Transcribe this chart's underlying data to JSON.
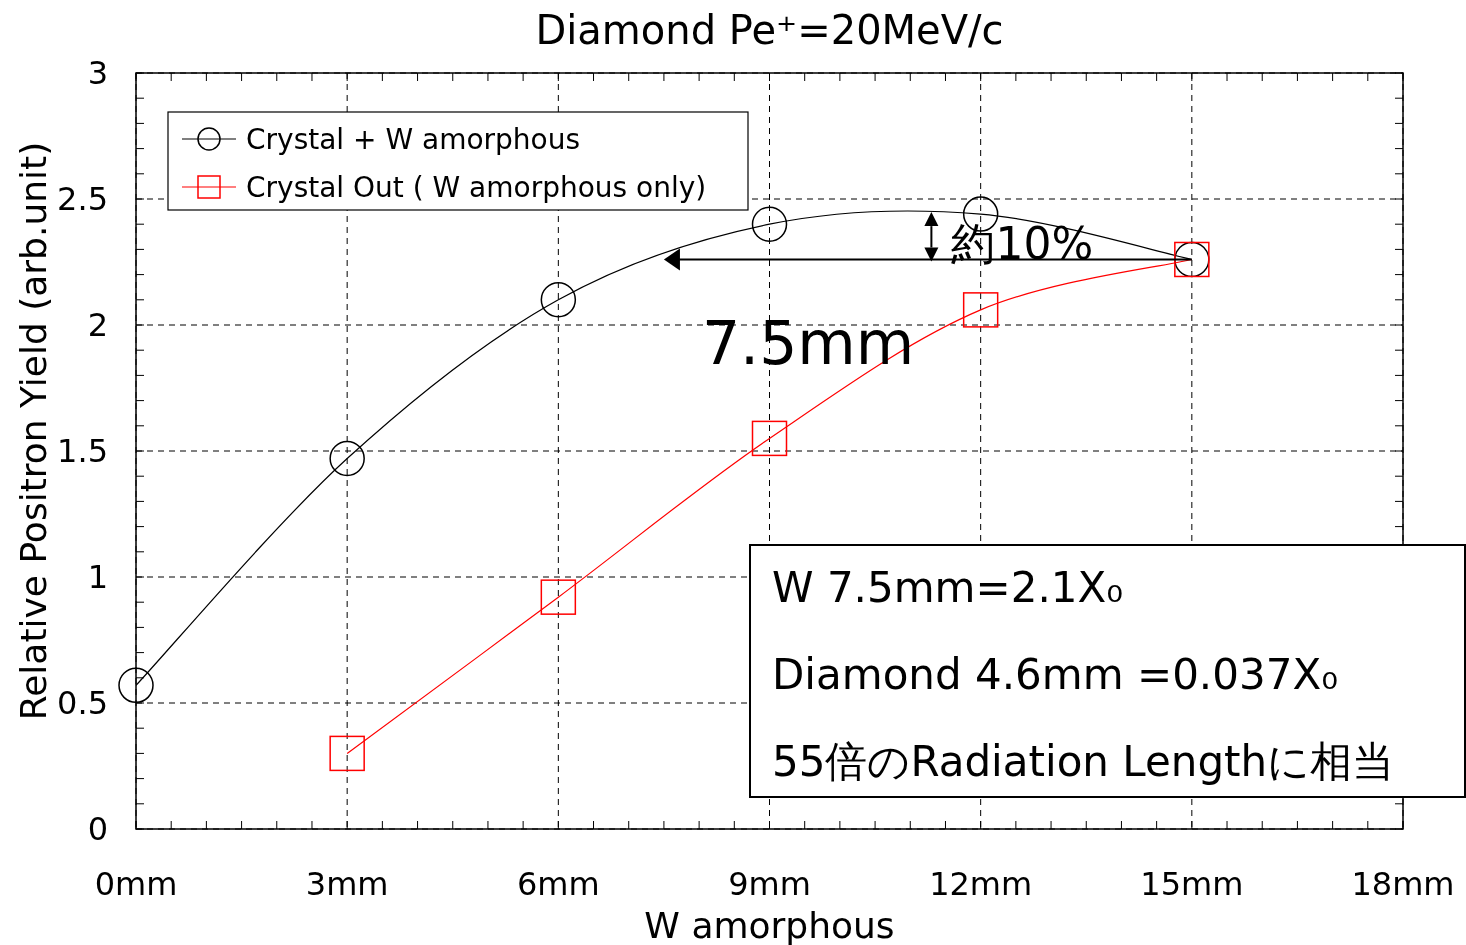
{
  "chart_data": {
    "type": "line",
    "title": "Diamond Pe⁺=20MeV/c",
    "xlabel": "W amorphous",
    "ylabel": "Relative Positron Yield (arb.unit)",
    "x": [
      0,
      3,
      6,
      9,
      12,
      15
    ],
    "series": [
      {
        "name": "Crystal + W amorphous",
        "color": "#000000",
        "marker": "circle",
        "values": [
          0.57,
          1.47,
          2.1,
          2.4,
          2.44,
          2.26
        ]
      },
      {
        "name": "Crystal Out ( W amorphous only)",
        "color": "#ff0000",
        "marker": "square",
        "values": [
          null,
          0.3,
          0.92,
          1.55,
          2.06,
          2.26
        ]
      }
    ],
    "xlim": [
      0,
      18
    ],
    "ylim": [
      0,
      3
    ],
    "xticks": [
      {
        "value": 0,
        "label": "0mm"
      },
      {
        "value": 3,
        "label": "3mm"
      },
      {
        "value": 6,
        "label": "6mm"
      },
      {
        "value": 9,
        "label": "9mm"
      },
      {
        "value": 12,
        "label": "12mm"
      },
      {
        "value": 15,
        "label": "15mm"
      },
      {
        "value": 18,
        "label": "18mm"
      }
    ],
    "yticks": [
      0,
      0.5,
      1,
      1.5,
      2,
      2.5,
      3
    ],
    "grid": true,
    "legend": "top left",
    "line_style": "solid",
    "annotations": [
      "約10%",
      "7.5mm",
      "W 7.5mm=2.1X₀",
      "Diamond 4.6mm =0.037X₀",
      "55倍のRadiation Lengthに相当"
    ]
  }
}
